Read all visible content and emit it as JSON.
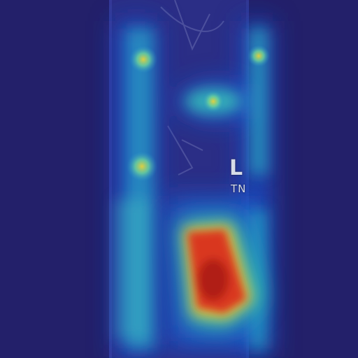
{
  "overlay": {
    "marker_side": "L",
    "marker_sub": "TN"
  },
  "colors": {
    "background": "#23206a",
    "heat_low": "#1f3aa8",
    "heat_mid": "#2cc0c8",
    "heat_high": "#e8d23a",
    "heat_peak": "#c81e1e"
  }
}
